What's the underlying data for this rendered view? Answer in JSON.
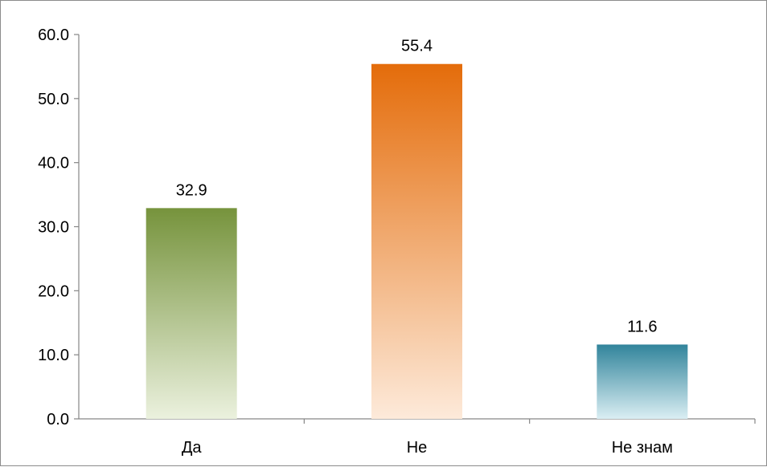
{
  "chart_data": {
    "type": "bar",
    "categories": [
      "Да",
      "Не",
      "Не знам"
    ],
    "values": [
      32.9,
      55.4,
      11.6
    ],
    "data_labels": [
      "32.9",
      "55.4",
      "11.6"
    ],
    "y_ticks": [
      "0.0",
      "10.0",
      "20.0",
      "30.0",
      "40.0",
      "50.0",
      "60.0"
    ],
    "ylim": [
      0,
      60
    ],
    "grid": false,
    "legend": "none",
    "colors": {
      "bar_1_top": "#76933c",
      "bar_1_bottom": "#ebf1de",
      "bar_2_top": "#e46c0a",
      "bar_2_bottom": "#fdeada",
      "bar_3_top": "#31849b",
      "bar_3_bottom": "#daeef3"
    }
  }
}
